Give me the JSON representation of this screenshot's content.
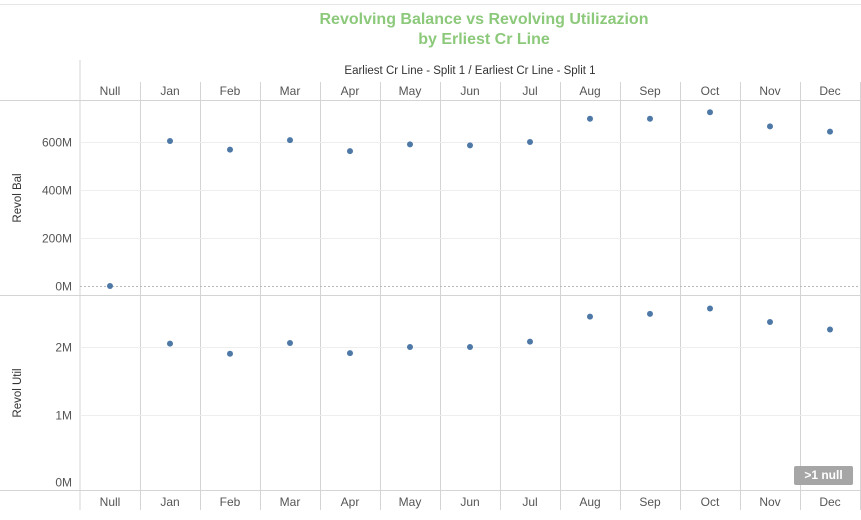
{
  "title_line1": "Revolving Balance vs Revolving Utilizazion",
  "title_line2": "by Erliest Cr Line",
  "null_badge": ">1 null",
  "chart_data": {
    "type": "scatter",
    "column_header": "Earliest Cr Line - Split 1 / Earliest Cr Line - Split 1",
    "categories": [
      "Null",
      "Jan",
      "Feb",
      "Mar",
      "Apr",
      "May",
      "Jun",
      "Jul",
      "Aug",
      "Sep",
      "Oct",
      "Nov",
      "Dec"
    ],
    "point_color": "#4e79a7",
    "panes": [
      {
        "ylabel": "Revol Bal",
        "ylim": [
          0,
          700
        ],
        "ticks": [
          {
            "v": 0,
            "label": "0M"
          },
          {
            "v": 200,
            "label": "200M"
          },
          {
            "v": 400,
            "label": "400M"
          },
          {
            "v": 600,
            "label": "600M"
          }
        ],
        "values": [
          0,
          604,
          568,
          608,
          562,
          590,
          586,
          600,
          697,
          697,
          724,
          665,
          643
        ]
      },
      {
        "ylabel": "Revol Util",
        "ylim": [
          0,
          2.5
        ],
        "ticks": [
          {
            "v": 0,
            "label": "0M"
          },
          {
            "v": 1,
            "label": "1M"
          },
          {
            "v": 2,
            "label": "2M"
          }
        ],
        "values": [
          null,
          2.05,
          1.9,
          2.06,
          1.91,
          2.0,
          2.0,
          2.08,
          2.45,
          2.49,
          2.57,
          2.37,
          2.26
        ]
      }
    ]
  }
}
